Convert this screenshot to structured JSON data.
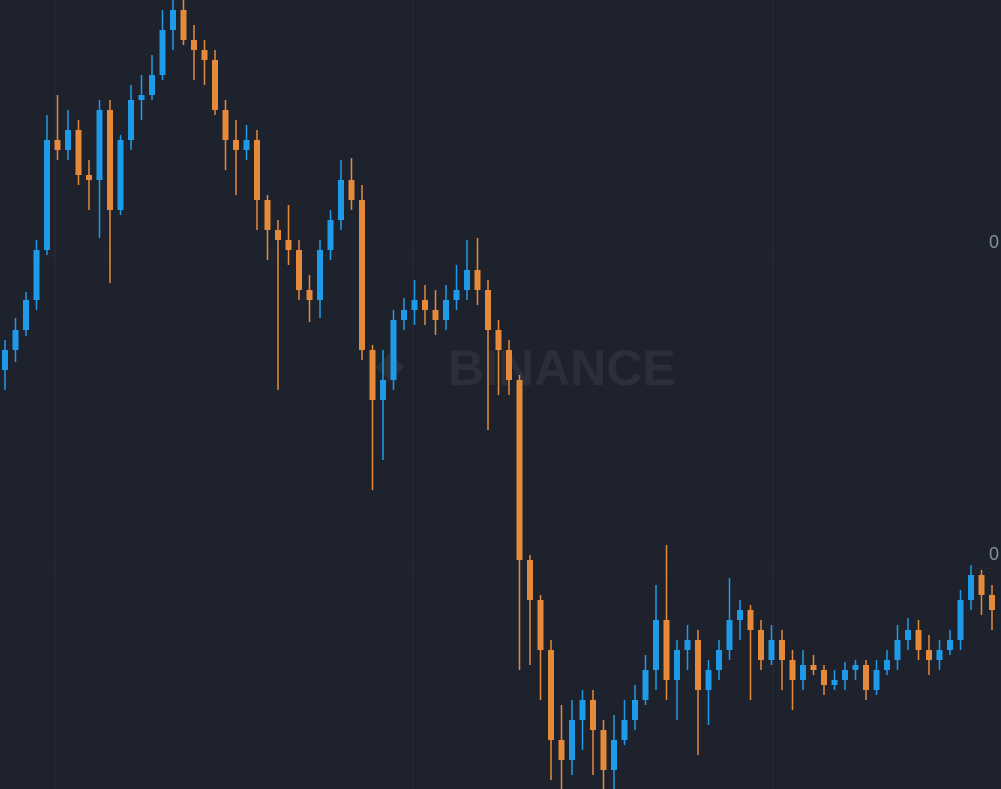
{
  "chart_data": {
    "type": "candlestick",
    "watermark": "BINANCE",
    "up_color": "#1e9ae8",
    "down_color": "#e5893b",
    "ylim": [
      0,
      0.0789
    ],
    "yticks": [
      {
        "value": 0.0221,
        "label": "0"
      },
      {
        "value": 0.0533,
        "label": "0"
      }
    ],
    "grid": true,
    "open": [
      0.0419,
      0.0439,
      0.0459,
      0.0489,
      0.0539,
      0.0649,
      0.0639,
      0.0659,
      0.0614,
      0.0609,
      0.0679,
      0.0579,
      0.0649,
      0.0689,
      0.0694,
      0.0714,
      0.0759,
      0.0779,
      0.0749,
      0.0739,
      0.0729,
      0.0679,
      0.0649,
      0.0639,
      0.0649,
      0.0589,
      0.0559,
      0.0549,
      0.0539,
      0.0499,
      0.0489,
      0.0539,
      0.0569,
      0.0609,
      0.0589,
      0.0439,
      0.0389,
      0.0409,
      0.0469,
      0.0479,
      0.0489,
      0.0479,
      0.0469,
      0.0489,
      0.0499,
      0.0519,
      0.0499,
      0.0459,
      0.0439,
      0.0409,
      0.0229,
      0.0189,
      0.0139,
      0.0049,
      0.0029,
      0.0069,
      0.0089,
      0.0059,
      0.0019,
      0.0049,
      0.0069,
      0.0089,
      0.0119,
      0.0169,
      0.0109,
      0.0139,
      0.0149,
      0.0099,
      0.0119,
      0.0139,
      0.0169,
      0.0179,
      0.0159,
      0.0129,
      0.0149,
      0.0129,
      0.0109,
      0.0124,
      0.0119,
      0.0104,
      0.0109,
      0.0119,
      0.0124,
      0.0099,
      0.0119,
      0.0129,
      0.0149,
      0.0159,
      0.0139,
      0.0129,
      0.0139,
      0.0149,
      0.0189,
      0.0214,
      0.0194
    ],
    "high": [
      0.0449,
      0.0471,
      0.0497,
      0.0549,
      0.0674,
      0.0694,
      0.0679,
      0.0669,
      0.0629,
      0.0689,
      0.0689,
      0.0654,
      0.0704,
      0.0714,
      0.0734,
      0.0779,
      0.0789,
      0.0789,
      0.0764,
      0.0749,
      0.0739,
      0.0689,
      0.0669,
      0.0664,
      0.0659,
      0.0594,
      0.0569,
      0.0584,
      0.0549,
      0.0514,
      0.0549,
      0.0579,
      0.0629,
      0.0631,
      0.0604,
      0.0444,
      0.0439,
      0.0479,
      0.0491,
      0.0509,
      0.0504,
      0.0499,
      0.0504,
      0.0524,
      0.0549,
      0.0551,
      0.0509,
      0.0469,
      0.0449,
      0.0414,
      0.0234,
      0.0194,
      0.0149,
      0.0084,
      0.0089,
      0.0099,
      0.0099,
      0.0069,
      0.0074,
      0.0089,
      0.0104,
      0.0134,
      0.0204,
      0.0244,
      0.0149,
      0.0164,
      0.0159,
      0.0129,
      0.0149,
      0.0211,
      0.0189,
      0.0184,
      0.0169,
      0.0164,
      0.0159,
      0.0139,
      0.0139,
      0.0134,
      0.0124,
      0.0119,
      0.0127,
      0.0129,
      0.0129,
      0.0129,
      0.0139,
      0.0164,
      0.0171,
      0.0169,
      0.0154,
      0.0149,
      0.0159,
      0.0199,
      0.0224,
      0.0219,
      0.0204
    ],
    "low": [
      0.0399,
      0.0427,
      0.0453,
      0.0479,
      0.0534,
      0.0629,
      0.0629,
      0.0604,
      0.0579,
      0.0551,
      0.0506,
      0.0574,
      0.0639,
      0.0669,
      0.0689,
      0.0709,
      0.0739,
      0.0744,
      0.0709,
      0.0704,
      0.0674,
      0.0619,
      0.0594,
      0.0629,
      0.0559,
      0.0529,
      0.0399,
      0.0524,
      0.0489,
      0.0467,
      0.0471,
      0.0529,
      0.0559,
      0.0579,
      0.0429,
      0.0299,
      0.0329,
      0.0399,
      0.0459,
      0.0464,
      0.0464,
      0.0454,
      0.0459,
      0.0479,
      0.0489,
      0.0484,
      0.0359,
      0.0394,
      0.0394,
      0.0119,
      0.0124,
      0.0089,
      0.0009,
      0,
      0.0014,
      0.0039,
      0.0014,
      0,
      0,
      0.0044,
      0.0059,
      0.0084,
      0.0099,
      0.0089,
      0.0069,
      0.0119,
      0.0034,
      0.0064,
      0.0109,
      0.0129,
      0.0149,
      0.0089,
      0.0119,
      0.0124,
      0.0099,
      0.0079,
      0.0099,
      0.0114,
      0.0094,
      0.0099,
      0.0099,
      0.0109,
      0.0089,
      0.0094,
      0.0114,
      0.0119,
      0.0139,
      0.0129,
      0.0114,
      0.0119,
      0.0134,
      0.0139,
      0.0179,
      0.0174,
      0.0159
    ],
    "close": [
      0.0439,
      0.0459,
      0.0489,
      0.0539,
      0.0649,
      0.0639,
      0.0659,
      0.0614,
      0.0609,
      0.0679,
      0.0579,
      0.0649,
      0.0689,
      0.0694,
      0.0714,
      0.0759,
      0.0779,
      0.0749,
      0.0739,
      0.0729,
      0.0679,
      0.0649,
      0.0639,
      0.0649,
      0.0589,
      0.0559,
      0.0549,
      0.0539,
      0.0499,
      0.0489,
      0.0539,
      0.0569,
      0.0609,
      0.0589,
      0.0439,
      0.0389,
      0.0409,
      0.0469,
      0.0479,
      0.0489,
      0.0479,
      0.0469,
      0.0489,
      0.0499,
      0.0519,
      0.0499,
      0.0459,
      0.0439,
      0.0409,
      0.0229,
      0.0189,
      0.0139,
      0.0049,
      0.0029,
      0.0069,
      0.0089,
      0.0059,
      0.0019,
      0.0049,
      0.0069,
      0.0089,
      0.0119,
      0.0169,
      0.0109,
      0.0139,
      0.0149,
      0.0099,
      0.0119,
      0.0139,
      0.0169,
      0.0179,
      0.0159,
      0.0129,
      0.0149,
      0.0129,
      0.0109,
      0.0124,
      0.0119,
      0.0104,
      0.0109,
      0.0119,
      0.0124,
      0.0099,
      0.0119,
      0.0129,
      0.0149,
      0.0159,
      0.0139,
      0.0129,
      0.0139,
      0.0149,
      0.0189,
      0.0214,
      0.0194,
      0.0179
    ]
  }
}
